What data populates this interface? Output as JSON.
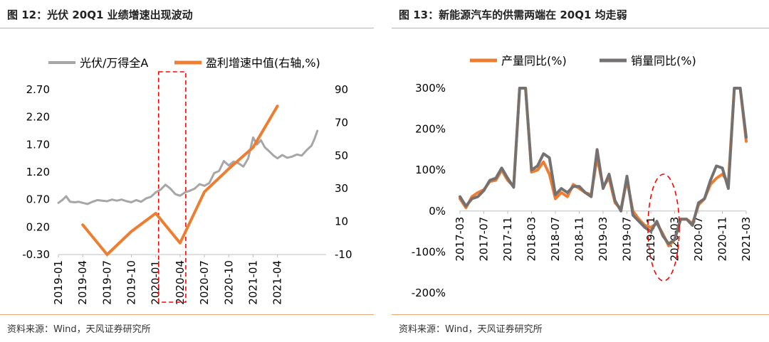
{
  "left": {
    "title": "图 12：光伏 20Q1 业绩增速出现波动",
    "source": "资料来源：Wind，天风证券研究所"
  },
  "right": {
    "title": "图 13：新能源汽车的供需两端在 20Q1 均走弱",
    "source": "资料来源：Wind，天风证券研究所"
  },
  "colors": {
    "gray": "#a6a6a6",
    "dark_gray": "#767171",
    "orange": "#ed7d31",
    "highlight": "#ff0000",
    "rule": "#e6a873"
  },
  "chart_data": [
    {
      "type": "line",
      "legend_position": "top",
      "x_ticks": [
        "2019-01",
        "2019-04",
        "2019-07",
        "2019-10",
        "2020-01",
        "2020-04",
        "2020-07",
        "2020-10",
        "2021-01",
        "2021-04"
      ],
      "y_left_ticks": [
        "2.70",
        "2.20",
        "1.70",
        "1.20",
        "0.70",
        "0.20",
        "-0.30"
      ],
      "y_left_range": [
        -0.3,
        2.7
      ],
      "y_right_ticks": [
        "90",
        "70",
        "50",
        "30",
        "10",
        "-10"
      ],
      "y_right_range": [
        -10,
        90
      ],
      "highlight": {
        "shape": "dashed-rect",
        "from": 2020.0,
        "to": 2020.25
      },
      "series": [
        {
          "name": "光伏/万得全A",
          "axis": "left",
          "color": "#a6a6a6",
          "x": [
            2019.0,
            2019.04,
            2019.08,
            2019.12,
            2019.17,
            2019.21,
            2019.25,
            2019.3,
            2019.35,
            2019.4,
            2019.45,
            2019.5,
            2019.55,
            2019.6,
            2019.65,
            2019.7,
            2019.75,
            2019.8,
            2019.85,
            2019.9,
            2019.95,
            2020.0,
            2020.05,
            2020.1,
            2020.15,
            2020.2,
            2020.25,
            2020.3,
            2020.35,
            2020.4,
            2020.45,
            2020.5,
            2020.55,
            2020.6,
            2020.65,
            2020.7,
            2020.75,
            2020.8,
            2020.85,
            2020.9,
            2020.95,
            2021.0,
            2021.04,
            2021.08,
            2021.12,
            2021.17,
            2021.21,
            2021.25,
            2021.3,
            2021.35,
            2021.4,
            2021.45,
            2021.5,
            2021.55,
            2021.6,
            2021.63,
            2021.66
          ],
          "y": [
            0.64,
            0.69,
            0.76,
            0.66,
            0.65,
            0.66,
            0.64,
            0.62,
            0.66,
            0.69,
            0.68,
            0.67,
            0.7,
            0.68,
            0.7,
            0.67,
            0.65,
            0.69,
            0.66,
            0.72,
            0.75,
            0.83,
            0.88,
            0.97,
            0.9,
            0.8,
            0.77,
            0.83,
            0.86,
            0.9,
            0.98,
            0.95,
            1.0,
            1.18,
            1.22,
            1.4,
            1.32,
            1.39,
            1.36,
            1.3,
            1.45,
            1.83,
            1.7,
            1.78,
            1.65,
            1.57,
            1.5,
            1.45,
            1.51,
            1.46,
            1.48,
            1.52,
            1.5,
            1.6,
            1.68,
            1.8,
            1.95
          ]
        },
        {
          "name": "盈利增速中值(右轴,%)",
          "axis": "right",
          "color": "#ed7d31",
          "x": [
            2019.25,
            2019.5,
            2019.75,
            2020.0,
            2020.25,
            2020.5,
            2020.75,
            2021.0,
            2021.25
          ],
          "y": [
            8,
            -10,
            4,
            15,
            -3,
            28,
            42,
            55,
            80
          ]
        }
      ]
    },
    {
      "type": "line",
      "legend_position": "top",
      "x_ticks": [
        "2017-03",
        "2017-07",
        "2017-11",
        "2018-03",
        "2018-07",
        "2018-11",
        "2019-03",
        "2019-07",
        "2019-11",
        "2020-03",
        "2020-07",
        "2020-11",
        "2021-03"
      ],
      "y_ticks": [
        "300%",
        "200%",
        "100%",
        "0%",
        "-100%",
        "-200%"
      ],
      "y_range": [
        -200,
        300
      ],
      "highlight": {
        "shape": "dashed-ellipse",
        "around": "2020-03"
      },
      "series": [
        {
          "name": "产量同比(%)",
          "color": "#ed7d31",
          "values": [
            30,
            8,
            35,
            45,
            52,
            72,
            75,
            100,
            75,
            60,
            300,
            300,
            95,
            100,
            120,
            90,
            30,
            45,
            35,
            65,
            55,
            45,
            40,
            130,
            60,
            80,
            20,
            5,
            75,
            0,
            -20,
            -35,
            -40,
            -30,
            -55,
            -85,
            -70,
            -20,
            -20,
            -30,
            15,
            30,
            65,
            80,
            90,
            70,
            300,
            300,
            170
          ]
        },
        {
          "name": "销量同比(%)",
          "color": "#767171",
          "values": [
            35,
            12,
            30,
            35,
            50,
            75,
            80,
            105,
            80,
            58,
            300,
            300,
            100,
            110,
            140,
            130,
            40,
            55,
            45,
            60,
            60,
            45,
            35,
            150,
            55,
            90,
            25,
            0,
            85,
            -10,
            -25,
            -40,
            -50,
            -25,
            -60,
            -80,
            -70,
            -20,
            -20,
            -35,
            20,
            30,
            75,
            110,
            105,
            55,
            300,
            300,
            180
          ]
        }
      ]
    }
  ]
}
